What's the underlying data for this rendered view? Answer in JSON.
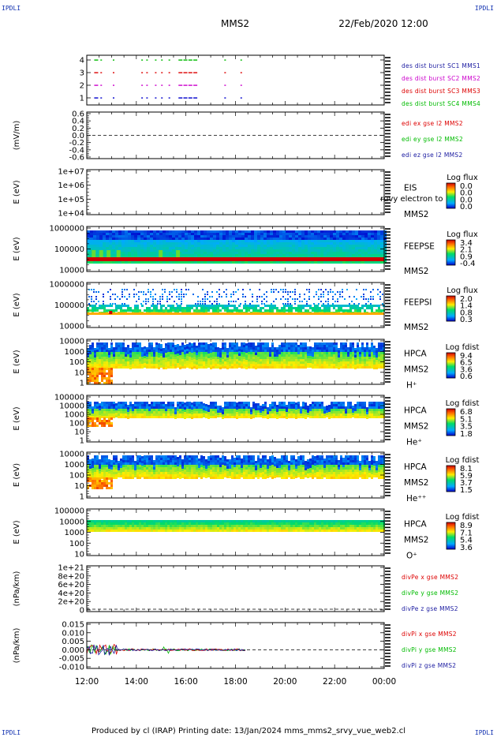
{
  "header": {
    "title": "MMS2",
    "date": "22/Feb/2020 12:00",
    "corner_tl": "IPDLI",
    "corner_tr": "IPDLI",
    "corner_bl": "IPDLI",
    "corner_br": "IPDLI"
  },
  "footer": {
    "text": "Produced by cl (IRAP)   Printing date: 13/Jan/2024   mms_mms2_srvy_vue_web2.cl"
  },
  "time_axis": {
    "tick_labels": [
      "12:00",
      "14:00",
      "16:00",
      "18:00",
      "20:00",
      "22:00",
      "00:00"
    ]
  },
  "colors": {
    "red": "#dd0000",
    "green": "#00bb00",
    "blue": "#0000cc",
    "magenta": "#cc00cc",
    "legend_blue": "#1a1aa0"
  },
  "chart_data": [
    {
      "type": "scatter",
      "ylabel": "",
      "ytick_labels": [
        "4",
        "3",
        "2",
        "1"
      ],
      "legend": [
        "des dist burst SC1 MMS1",
        "des dist burst SC2 MMS2",
        "des dist burst SC3 MMS3",
        "des dist burst SC4 MMS4"
      ],
      "legend_colors": [
        "#1a1aa0",
        "#cc00cc",
        "#dd0000",
        "#00bb00"
      ],
      "series": [
        {
          "level": 4,
          "color": "#00bb00",
          "x_hours": [
            12.3,
            12.55,
            13.05,
            14.2,
            14.4,
            14.75,
            15.0,
            15.3,
            15.7,
            15.9,
            16.1,
            16.3,
            17.55,
            18.2
          ]
        },
        {
          "level": 3,
          "color": "#dd0000",
          "x_hours": [
            12.3,
            12.55,
            13.05,
            14.2,
            14.4,
            14.75,
            15.0,
            15.3,
            15.7,
            15.9,
            16.1,
            16.3,
            17.55,
            18.2
          ]
        },
        {
          "level": 2,
          "color": "#cc00cc",
          "x_hours": [
            12.3,
            12.55,
            13.05,
            14.2,
            14.4,
            14.75,
            15.0,
            15.3,
            15.7,
            15.9,
            16.1,
            16.3,
            17.55,
            18.2
          ]
        },
        {
          "level": 1,
          "color": "#0000cc",
          "x_hours": [
            12.3,
            12.55,
            13.05,
            14.2,
            14.4,
            14.75,
            15.0,
            15.3,
            15.7,
            15.9,
            16.1,
            16.3,
            17.55,
            18.2
          ]
        }
      ]
    },
    {
      "type": "line",
      "ylabel": "(mV/m)",
      "ytick_labels": [
        "0.6",
        "0.4",
        "0.2",
        "0.0",
        "-0.2",
        "-0.4",
        "-0.6"
      ],
      "legend": [
        "edi ex gse l2 MMS2",
        "edi ey gse l2 MMS2",
        "edi ez gse l2 MMS2"
      ],
      "legend_colors": [
        "#dd0000",
        "#00bb00",
        "#1a1aa0"
      ],
      "reference_line": 0.0
    },
    {
      "type": "heatmap",
      "ylabel": "E (eV)",
      "ytick_labels": [
        "1e+07",
        "1e+06",
        "1e+05",
        "1e+04"
      ],
      "instrument": [
        "EIS",
        "MMS2"
      ],
      "overlay_text": "ruvy electron to",
      "colorbar": {
        "title": "Log flux",
        "ticks": [
          "0.0",
          "0.0",
          "0.0",
          "0.0"
        ]
      }
    },
    {
      "type": "heatmap",
      "ylabel": "E (eV)",
      "ytick_labels": [
        "1000000",
        "100000",
        "10000"
      ],
      "instrument": [
        "FEEPSE",
        "MMS2"
      ],
      "colorbar": {
        "title": "Log flux",
        "ticks": [
          "3.4",
          "2.1",
          "0.9",
          "-0.4"
        ]
      }
    },
    {
      "type": "heatmap",
      "ylabel": "E (eV)",
      "ytick_labels": [
        "1000000",
        "100000",
        "10000"
      ],
      "instrument": [
        "FEEPSI",
        "MMS2"
      ],
      "colorbar": {
        "title": "Log flux",
        "ticks": [
          "2.0",
          "1.4",
          "0.8",
          "0.3"
        ]
      }
    },
    {
      "type": "heatmap",
      "ylabel": "E (eV)",
      "ytick_labels": [
        "10000",
        "1000",
        "100",
        "10",
        "1"
      ],
      "instrument": [
        "HPCA",
        "MMS2",
        "H⁺"
      ],
      "colorbar": {
        "title": "Log fdist",
        "ticks": [
          "9.4",
          "6.5",
          "3.6",
          "0.6"
        ]
      }
    },
    {
      "type": "heatmap",
      "ylabel": "E (eV)",
      "ytick_labels": [
        "100000",
        "10000",
        "1000",
        "100",
        "10",
        "1"
      ],
      "instrument": [
        "HPCA",
        "MMS2",
        "He⁺"
      ],
      "colorbar": {
        "title": "Log fdist",
        "ticks": [
          "6.8",
          "5.1",
          "3.5",
          "1.8"
        ]
      }
    },
    {
      "type": "heatmap",
      "ylabel": "E (eV)",
      "ytick_labels": [
        "10000",
        "1000",
        "100",
        "10",
        "1"
      ],
      "instrument": [
        "HPCA",
        "MMS2",
        "He⁺⁺"
      ],
      "colorbar": {
        "title": "Log fdist",
        "ticks": [
          "8.1",
          "5.9",
          "3.7",
          "1.5"
        ]
      }
    },
    {
      "type": "heatmap",
      "ylabel": "E (eV)",
      "ytick_labels": [
        "100000",
        "10000",
        "1000",
        "100",
        "10"
      ],
      "instrument": [
        "HPCA",
        "MMS2",
        "O⁺"
      ],
      "colorbar": {
        "title": "Log fdist",
        "ticks": [
          "8.9",
          "7.1",
          "5.4",
          "3.6"
        ]
      }
    },
    {
      "type": "line",
      "ylabel": "(nPa/km)",
      "ytick_labels": [
        "1e+21",
        "8e+20",
        "6e+20",
        "4e+20",
        "2e+20",
        "0"
      ],
      "legend": [
        "divPe x gse MMS2",
        "divPe y gse MMS2",
        "divPe z gse MMS2"
      ],
      "legend_colors": [
        "#dd0000",
        "#00bb00",
        "#1a1aa0"
      ],
      "reference_line": 0
    },
    {
      "type": "line",
      "ylabel": "(nPa/km)",
      "ytick_labels": [
        "0.015",
        "0.010",
        "0.005",
        "0.000",
        "-0.005",
        "-0.010"
      ],
      "legend": [
        "divPi x gse MMS2",
        "divPi y gse MMS2",
        "divPi z gse MMS2"
      ],
      "legend_colors": [
        "#dd0000",
        "#00bb00",
        "#1a1aa0"
      ],
      "reference_line": 0.0,
      "data_end_hour": 18.4
    }
  ]
}
